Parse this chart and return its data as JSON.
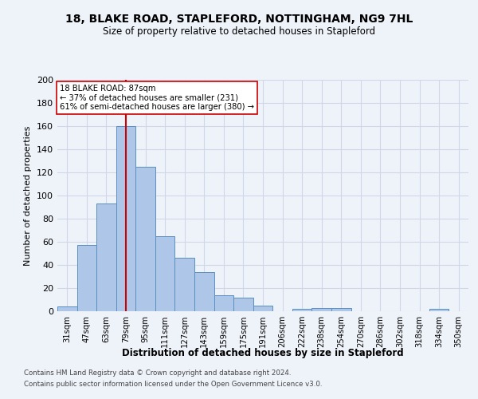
{
  "title_line1": "18, BLAKE ROAD, STAPLEFORD, NOTTINGHAM, NG9 7HL",
  "title_line2": "Size of property relative to detached houses in Stapleford",
  "xlabel": "Distribution of detached houses by size in Stapleford",
  "ylabel": "Number of detached properties",
  "footer_line1": "Contains HM Land Registry data © Crown copyright and database right 2024.",
  "footer_line2": "Contains public sector information licensed under the Open Government Licence v3.0.",
  "categories": [
    "31sqm",
    "47sqm",
    "63sqm",
    "79sqm",
    "95sqm",
    "111sqm",
    "127sqm",
    "143sqm",
    "159sqm",
    "175sqm",
    "191sqm",
    "206sqm",
    "222sqm",
    "238sqm",
    "254sqm",
    "270sqm",
    "286sqm",
    "302sqm",
    "318sqm",
    "334sqm",
    "350sqm"
  ],
  "values": [
    4,
    57,
    93,
    160,
    125,
    65,
    46,
    34,
    14,
    12,
    5,
    0,
    2,
    3,
    3,
    0,
    0,
    0,
    0,
    2,
    0
  ],
  "bar_color": "#aec6e8",
  "bar_edge_color": "#5a8fc0",
  "grid_color": "#d0d8e8",
  "background_color": "#eef2f9",
  "property_bin_index": 3,
  "annotation_text_line1": "18 BLAKE ROAD: 87sqm",
  "annotation_text_line2": "← 37% of detached houses are smaller (231)",
  "annotation_text_line3": "61% of semi-detached houses are larger (380) →",
  "vline_color": "#cc0000",
  "annotation_box_color": "#ffffff",
  "annotation_box_edge_color": "#cc0000",
  "ylim": [
    0,
    200
  ],
  "yticks": [
    0,
    20,
    40,
    60,
    80,
    100,
    120,
    140,
    160,
    180,
    200
  ]
}
